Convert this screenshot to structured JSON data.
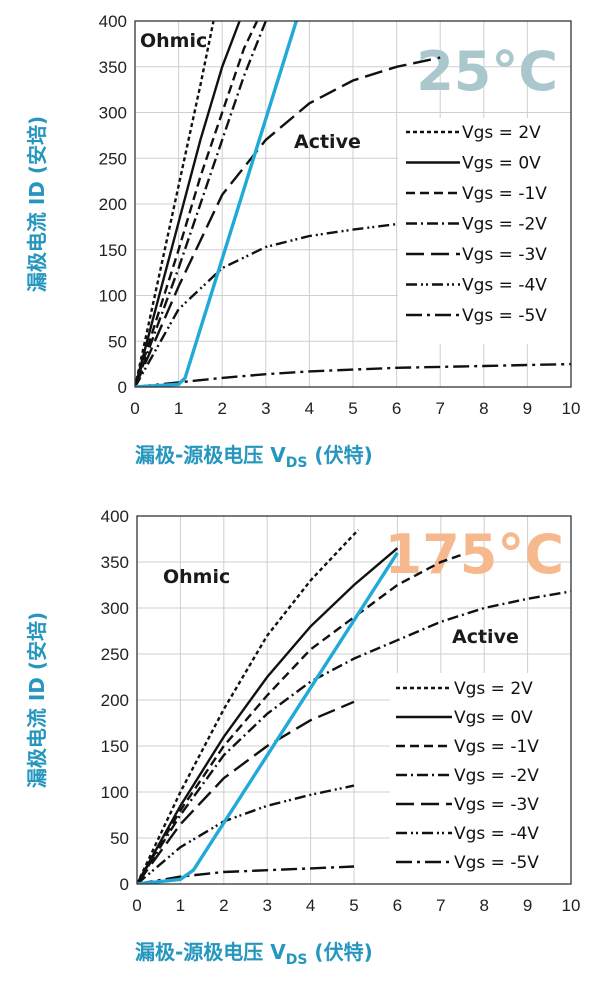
{
  "colors": {
    "axis_label": "#2596be",
    "transition_line": "#21a9d8",
    "curve": "#111111",
    "temp_25": "#a9c7cc",
    "temp_175": "#f5b98d"
  },
  "chart_data": [
    {
      "type": "line",
      "title": "25°C",
      "xlabel": "漏极-源极电压 V",
      "xlabel_sub": "DS",
      "xlabel_tail": " (伏特)",
      "ylabel": "漏极电流 ID (安培)",
      "xlim": [
        0,
        10
      ],
      "ylim": [
        0,
        400
      ],
      "xticks": [
        "0",
        "1",
        "2",
        "3",
        "4",
        "5",
        "6",
        "7",
        "8",
        "9",
        "10"
      ],
      "yticks": [
        "0",
        "50",
        "100",
        "150",
        "200",
        "250",
        "300",
        "350",
        "400"
      ],
      "annotations": [
        "Ohmic",
        "Active"
      ],
      "legend_position": "right",
      "series": [
        {
          "name": "Vgs = 2V",
          "style": "shortdash",
          "x": [
            0,
            0.5,
            1,
            1.5,
            1.8
          ],
          "y": [
            0,
            110,
            220,
            330,
            400
          ]
        },
        {
          "name": "Vgs = 0V",
          "style": "solid",
          "x": [
            0,
            0.5,
            1,
            1.5,
            2.0,
            2.4
          ],
          "y": [
            0,
            90,
            180,
            270,
            350,
            400
          ]
        },
        {
          "name": "Vgs = -1V",
          "style": "dash",
          "x": [
            0,
            0.5,
            1,
            1.5,
            2,
            2.5,
            2.8
          ],
          "y": [
            0,
            75,
            150,
            230,
            300,
            370,
            400
          ]
        },
        {
          "name": "Vgs = -2V",
          "style": "dashdot",
          "x": [
            0,
            0.5,
            1,
            1.5,
            2,
            2.5,
            3.0
          ],
          "y": [
            0,
            65,
            130,
            200,
            270,
            340,
            400
          ]
        },
        {
          "name": "Vgs = -3V",
          "style": "longdash",
          "x": [
            0,
            1,
            2,
            3,
            4,
            5,
            6,
            7
          ],
          "y": [
            0,
            110,
            210,
            270,
            310,
            335,
            350,
            360
          ]
        },
        {
          "name": "Vgs = -4V",
          "style": "dashdotdot",
          "x": [
            0,
            1,
            2,
            3,
            4,
            5,
            6
          ],
          "y": [
            0,
            85,
            130,
            153,
            165,
            172,
            178
          ]
        },
        {
          "name": "Vgs = -5V",
          "style": "dashdotlong",
          "x": [
            0,
            1,
            2,
            3,
            4,
            5,
            6,
            7,
            8,
            9,
            10
          ],
          "y": [
            0,
            5,
            10,
            14,
            17,
            19,
            21,
            22,
            23,
            24,
            25
          ]
        }
      ],
      "transition_line": {
        "x": [
          0,
          1,
          1.15,
          3.7
        ],
        "y": [
          0,
          3,
          10,
          400
        ]
      }
    },
    {
      "type": "line",
      "title": "175°C",
      "xlabel": "漏极-源极电压 V",
      "xlabel_sub": "DS",
      "xlabel_tail": " (伏特)",
      "ylabel": "漏极电流 ID (安培)",
      "xlim": [
        0,
        10
      ],
      "ylim": [
        0,
        400
      ],
      "xticks": [
        "0",
        "1",
        "2",
        "3",
        "4",
        "5",
        "6",
        "7",
        "8",
        "9",
        "10"
      ],
      "yticks": [
        "0",
        "50",
        "100",
        "150",
        "200",
        "250",
        "300",
        "350",
        "400"
      ],
      "annotations": [
        "Ohmic",
        "Active"
      ],
      "legend_position": "right",
      "series": [
        {
          "name": "Vgs = 2V",
          "style": "shortdash",
          "x": [
            0,
            1,
            2,
            3,
            4,
            5.1
          ],
          "y": [
            0,
            100,
            190,
            270,
            330,
            385
          ]
        },
        {
          "name": "Vgs = 0V",
          "style": "solid",
          "x": [
            0,
            1,
            2,
            3,
            4,
            5,
            6
          ],
          "y": [
            0,
            85,
            160,
            225,
            280,
            325,
            365
          ]
        },
        {
          "name": "Vgs = -1V",
          "style": "dash",
          "x": [
            0,
            1,
            2,
            3,
            4,
            5,
            6,
            7,
            7.5
          ],
          "y": [
            0,
            80,
            150,
            205,
            255,
            290,
            325,
            350,
            358
          ]
        },
        {
          "name": "Vgs = -2V",
          "style": "dashdot",
          "x": [
            0,
            1,
            2,
            3,
            4,
            5,
            6,
            7,
            8,
            9,
            10
          ],
          "y": [
            0,
            75,
            140,
            185,
            220,
            245,
            265,
            285,
            300,
            310,
            318
          ]
        },
        {
          "name": "Vgs = -3V",
          "style": "longdash",
          "x": [
            0,
            1,
            2,
            3,
            4,
            5
          ],
          "y": [
            0,
            65,
            115,
            150,
            178,
            198
          ]
        },
        {
          "name": "Vgs = -4V",
          "style": "dashdotdot",
          "x": [
            0,
            1,
            2,
            3,
            4,
            5
          ],
          "y": [
            0,
            40,
            68,
            85,
            97,
            107
          ]
        },
        {
          "name": "Vgs = -5V",
          "style": "dashdotlong",
          "x": [
            0,
            1,
            2,
            3,
            4,
            5
          ],
          "y": [
            0,
            8,
            13,
            15,
            17,
            19
          ]
        }
      ],
      "transition_line": {
        "x": [
          0,
          1,
          1.3,
          6
        ],
        "y": [
          0,
          5,
          15,
          360
        ]
      }
    }
  ]
}
